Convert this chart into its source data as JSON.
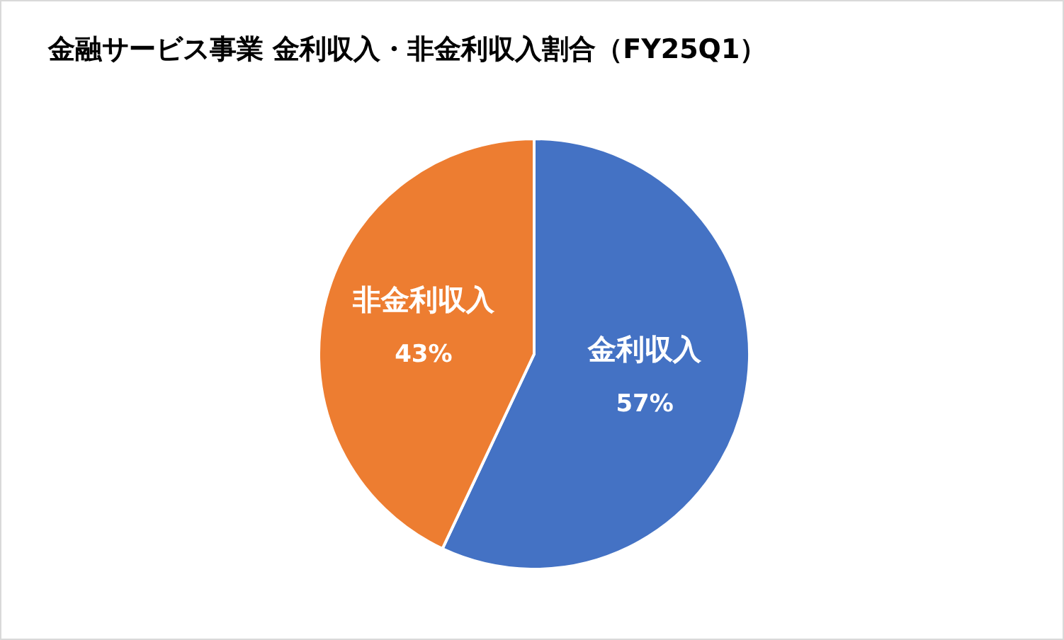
{
  "chart_data": {
    "type": "pie",
    "title": "金融サービス事業 金利収入・非金利収入割合（FY25Q1）",
    "categories": [
      "金利収入",
      "非金利収入"
    ],
    "values": [
      57,
      43
    ],
    "colors": [
      "#4472c4",
      "#ed7d31"
    ],
    "value_labels": [
      "57%",
      "43%"
    ],
    "legend": false
  }
}
